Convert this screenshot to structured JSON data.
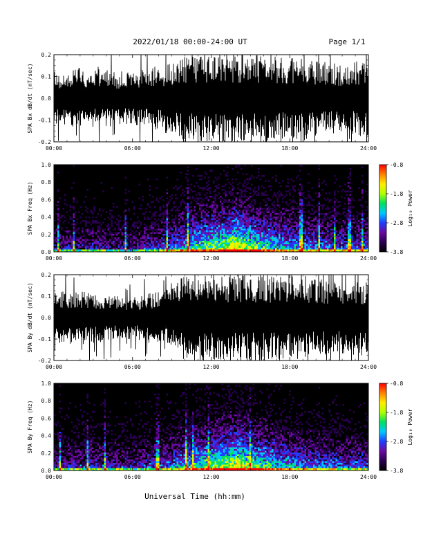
{
  "header": {
    "date_range": "2022/01/18  00:00-24:00 UT",
    "page": "Page 1/1"
  },
  "footer": {
    "xlabel": "Universal Time (hh:mm)"
  },
  "colors": {
    "trace": "#000000",
    "background": "#ffffff",
    "colormap": [
      "#000000",
      "#2a0050",
      "#6a0aa0",
      "#1f3cff",
      "#00c8ff",
      "#00e060",
      "#b0ff00",
      "#ffee00",
      "#ff8000",
      "#ff0000"
    ]
  },
  "chart_data": [
    {
      "type": "line",
      "ylabel": "SPA Bx dB/dt (nT/sec)",
      "xlim": [
        "00:00",
        "24:00"
      ],
      "ylim": [
        -0.2,
        0.2
      ],
      "x_ticks": [
        "00:00",
        "06:00",
        "12:00",
        "18:00",
        "24:00"
      ],
      "y_ticks": [
        "0.2",
        "0.1",
        "0.0",
        "-0.1",
        "-0.2"
      ],
      "envelope_hours": [
        0,
        2,
        4,
        6,
        8,
        9,
        10,
        12,
        14,
        16,
        18,
        19,
        20,
        22,
        24
      ],
      "envelope_amplitude": [
        0.12,
        0.14,
        0.13,
        0.12,
        0.15,
        0.17,
        0.2,
        0.2,
        0.2,
        0.2,
        0.18,
        0.2,
        0.17,
        0.16,
        0.18
      ]
    },
    {
      "type": "heatmap",
      "ylabel": "SPA Bx Freq (Hz)",
      "xlim": [
        "00:00",
        "24:00"
      ],
      "ylim": [
        0,
        1
      ],
      "x_ticks": [
        "00:00",
        "06:00",
        "12:00",
        "18:00",
        "24:00"
      ],
      "y_ticks": [
        "1.0",
        "0.8",
        "0.6",
        "0.4",
        "0.2",
        "0.0"
      ],
      "colorbar": {
        "label": "Log₁₀ Power",
        "range": [
          -3.8,
          -0.8
        ],
        "ticks": [
          "-0.8",
          "-1.8",
          "-2.8",
          "-3.8"
        ]
      },
      "activity_hours": [
        0,
        3,
        6,
        9,
        11,
        13,
        14,
        15,
        17,
        19,
        21,
        24
      ],
      "activity_level": [
        0.35,
        0.4,
        0.35,
        0.55,
        0.8,
        0.9,
        1.0,
        0.85,
        0.7,
        0.6,
        0.55,
        0.5
      ]
    },
    {
      "type": "line",
      "ylabel": "SPA By dB/dt (nT/sec)",
      "xlim": [
        "00:00",
        "24:00"
      ],
      "ylim": [
        -0.2,
        0.2
      ],
      "x_ticks": [
        "00:00",
        "06:00",
        "12:00",
        "18:00",
        "24:00"
      ],
      "y_ticks": [
        "0.2",
        "0.1",
        "0.0",
        "-0.1",
        "-0.2"
      ],
      "envelope_hours": [
        0,
        2,
        4,
        6,
        8,
        9,
        10,
        12,
        14,
        16,
        18,
        19,
        20,
        22,
        24
      ],
      "envelope_amplitude": [
        0.12,
        0.13,
        0.11,
        0.1,
        0.12,
        0.15,
        0.2,
        0.2,
        0.2,
        0.2,
        0.19,
        0.2,
        0.18,
        0.17,
        0.18
      ]
    },
    {
      "type": "heatmap",
      "ylabel": "SPA By Freq (Hz)",
      "xlim": [
        "00:00",
        "24:00"
      ],
      "ylim": [
        0,
        1
      ],
      "x_ticks": [
        "00:00",
        "06:00",
        "12:00",
        "18:00",
        "24:00"
      ],
      "y_ticks": [
        "1.0",
        "0.8",
        "0.6",
        "0.4",
        "0.2",
        "0.0"
      ],
      "colorbar": {
        "label": "Log₁₀ Power",
        "range": [
          -3.8,
          -0.8
        ],
        "ticks": [
          "-0.8",
          "-1.8",
          "-2.8",
          "-3.8"
        ]
      },
      "activity_hours": [
        0,
        3,
        6,
        9,
        11,
        13,
        14,
        15,
        17,
        19,
        21,
        24
      ],
      "activity_level": [
        0.4,
        0.45,
        0.4,
        0.55,
        0.8,
        0.9,
        1.0,
        0.85,
        0.7,
        0.6,
        0.55,
        0.5
      ]
    }
  ]
}
